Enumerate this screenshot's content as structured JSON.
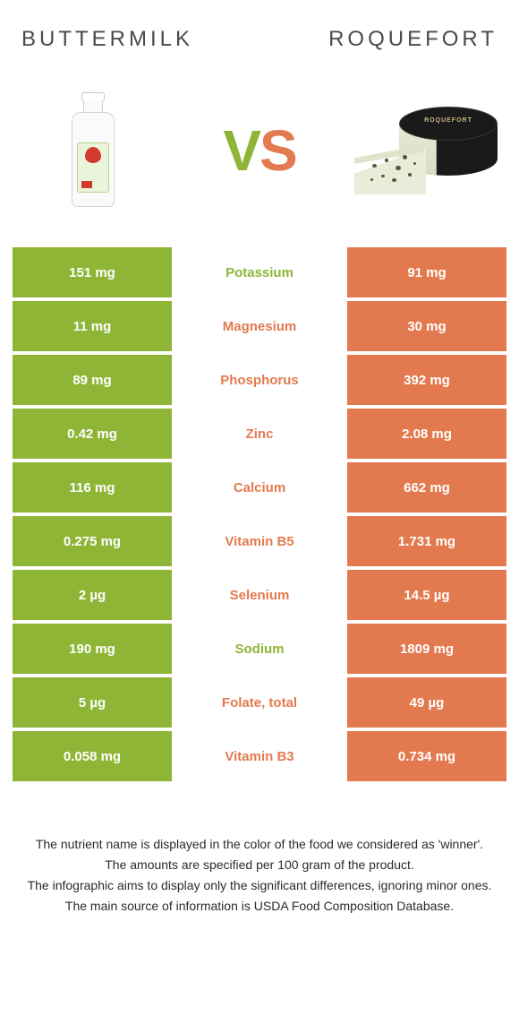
{
  "colors": {
    "left": "#8fb536",
    "right": "#e37a4f",
    "text_dark": "#4a4a4a"
  },
  "header": {
    "left_title": "Buttermilk",
    "right_title": "Roquefort"
  },
  "vs": {
    "v": "V",
    "s": "S"
  },
  "rows": [
    {
      "nutrient": "Potassium",
      "left": "151 mg",
      "right": "91 mg",
      "winner": "left"
    },
    {
      "nutrient": "Magnesium",
      "left": "11 mg",
      "right": "30 mg",
      "winner": "right"
    },
    {
      "nutrient": "Phosphorus",
      "left": "89 mg",
      "right": "392 mg",
      "winner": "right"
    },
    {
      "nutrient": "Zinc",
      "left": "0.42 mg",
      "right": "2.08 mg",
      "winner": "right"
    },
    {
      "nutrient": "Calcium",
      "left": "116 mg",
      "right": "662 mg",
      "winner": "right"
    },
    {
      "nutrient": "Vitamin B5",
      "left": "0.275 mg",
      "right": "1.731 mg",
      "winner": "right"
    },
    {
      "nutrient": "Selenium",
      "left": "2 µg",
      "right": "14.5 µg",
      "winner": "right"
    },
    {
      "nutrient": "Sodium",
      "left": "190 mg",
      "right": "1809 mg",
      "winner": "left"
    },
    {
      "nutrient": "Folate, total",
      "left": "5 µg",
      "right": "49 µg",
      "winner": "right"
    },
    {
      "nutrient": "Vitamin B3",
      "left": "0.058 mg",
      "right": "0.734 mg",
      "winner": "right"
    }
  ],
  "footer": {
    "l1": "The nutrient name is displayed in the color of the food we considered as 'winner'.",
    "l2": "The amounts are specified per 100 gram of the product.",
    "l3": "The infographic aims to display only the significant differences, ignoring minor ones.",
    "l4": "The main source of information is USDA Food Composition Database."
  }
}
